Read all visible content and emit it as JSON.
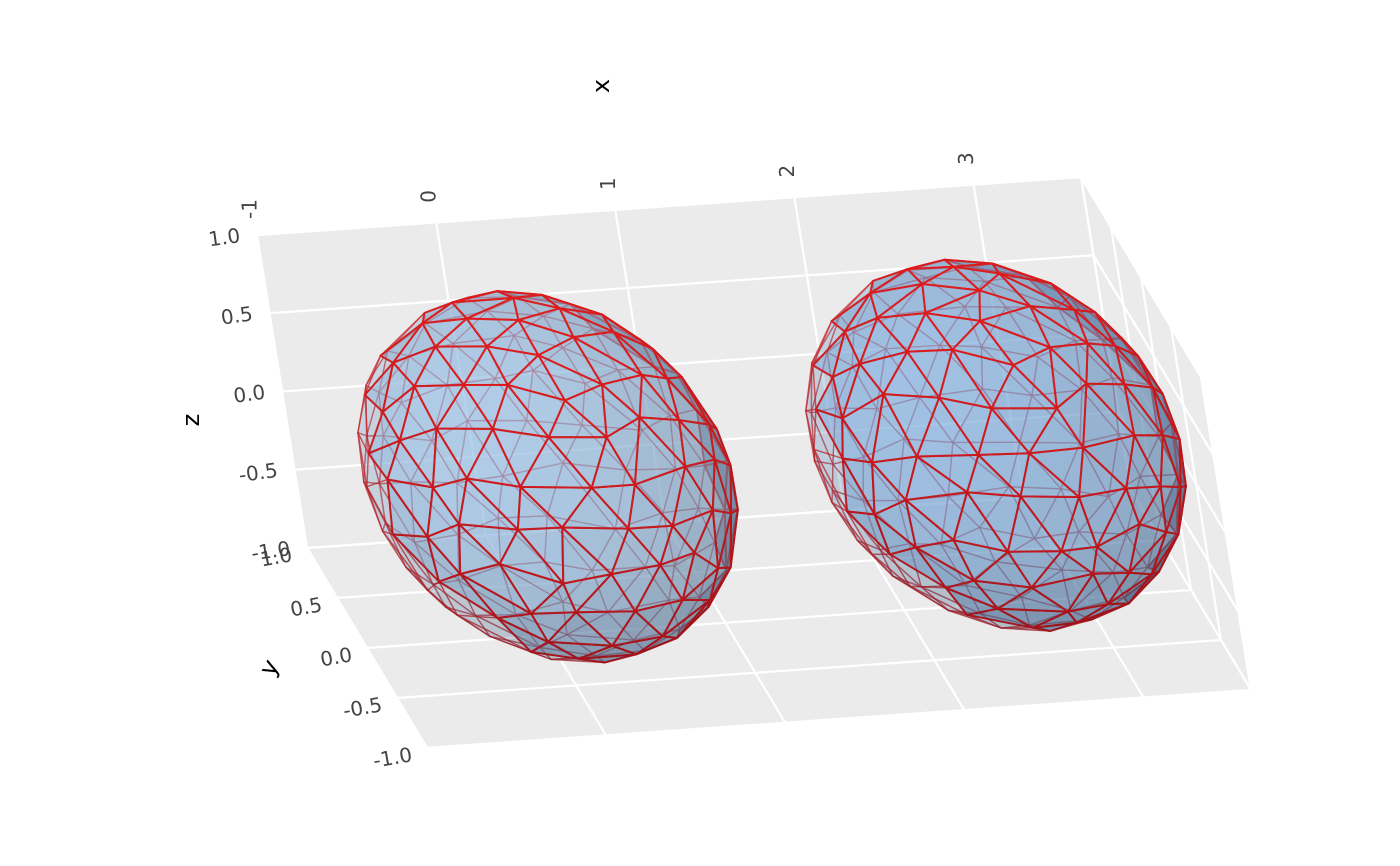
{
  "chart_data": {
    "type": "mesh3d",
    "axes": {
      "x": {
        "title": "x",
        "range": [
          -1,
          3.6
        ],
        "ticks": [
          "-1",
          "0",
          "1",
          "2",
          "3"
        ]
      },
      "y": {
        "title": "y",
        "range": [
          -1,
          1
        ],
        "ticks": [
          "-1.0",
          "-0.5",
          "0.0",
          "0.5",
          "1.0"
        ]
      },
      "z": {
        "title": "z",
        "range": [
          -1,
          1
        ],
        "ticks": [
          "-1.0",
          "-0.5",
          "0.0",
          "0.5",
          "1.0"
        ]
      }
    },
    "grid": true,
    "background_color": "#ebebeb",
    "grid_color": "#ffffff",
    "meshes": [
      {
        "shape": "sphere",
        "center": [
          0.15,
          0,
          0
        ],
        "radius": 1.0,
        "face_color": "#9ec9f2",
        "edge_color": "#e01a1a"
      },
      {
        "shape": "sphere",
        "center": [
          2.65,
          0,
          0
        ],
        "radius": 1.0,
        "face_color": "#86b8ec",
        "edge_color": "#e01a1a"
      }
    ]
  }
}
